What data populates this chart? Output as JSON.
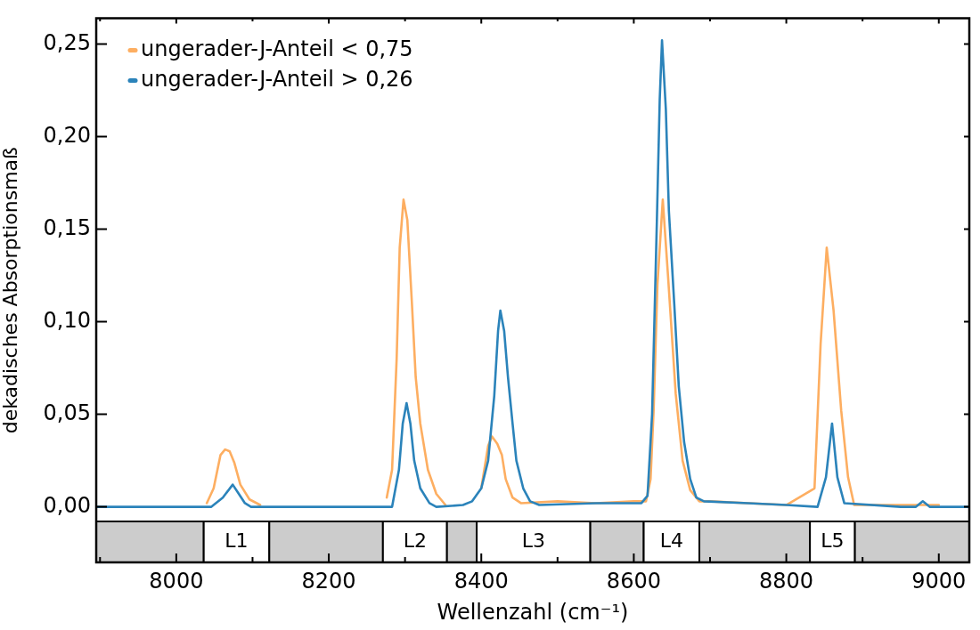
{
  "chart_data": {
    "type": "line",
    "xlabel": "Wellenzahl (cm⁻¹)",
    "ylabel": "dekadisches Absorptionsmaß",
    "legend": "top left",
    "line_style": "solid",
    "xlim": [
      7895,
      9040
    ],
    "xticks": [
      {
        "value": 7900,
        "label": null
      },
      8000,
      {
        "value": 8100,
        "label": null
      },
      8200,
      {
        "value": 8300,
        "label": null
      },
      8400,
      {
        "value": 8500,
        "label": null
      },
      8600,
      {
        "value": 8700,
        "label": null
      },
      8800,
      {
        "value": 8900,
        "label": null
      },
      9000
    ],
    "ylim": [
      -0.03,
      0.264
    ],
    "yticks": [
      {
        "value": 0,
        "label": "0,00"
      },
      {
        "value": 0.05,
        "label": "0,05"
      },
      {
        "value": 0.1,
        "label": "0,10"
      },
      {
        "value": 0.15,
        "label": "0,15"
      },
      {
        "value": 0.2,
        "label": "0,20"
      },
      {
        "value": 0.25,
        "label": "0,25"
      }
    ],
    "bands": [
      {
        "axis": "x",
        "from": 7895,
        "to": 8036,
        "color": "#cccccc"
      },
      {
        "axis": "x",
        "from": 8036,
        "to": 8122,
        "label": "L1",
        "color": "#ffffff"
      },
      {
        "axis": "x",
        "from": 8122,
        "to": 8271,
        "color": "#cccccc"
      },
      {
        "axis": "x",
        "from": 8271,
        "to": 8355,
        "label": "L2",
        "color": "#ffffff"
      },
      {
        "axis": "x",
        "from": 8355,
        "to": 8394,
        "color": "#cccccc"
      },
      {
        "axis": "x",
        "from": 8394,
        "to": 8543,
        "label": "L3",
        "color": "#ffffff"
      },
      {
        "axis": "x",
        "from": 8543,
        "to": 8613,
        "color": "#cccccc"
      },
      {
        "axis": "x",
        "from": 8613,
        "to": 8686,
        "label": "L4",
        "color": "#ffffff"
      },
      {
        "axis": "x",
        "from": 8686,
        "to": 8831,
        "color": "#cccccc"
      },
      {
        "axis": "x",
        "from": 8831,
        "to": 8890,
        "label": "L5",
        "color": "#ffffff"
      },
      {
        "axis": "x",
        "from": 8890,
        "to": 9040,
        "color": "#cccccc"
      }
    ],
    "series": [
      {
        "name": "ungerader-J-Anteil < 0,75",
        "color": "#fdae61",
        "x": [
          8040,
          8049,
          8058,
          8064,
          8070,
          8076,
          8084,
          8096,
          8110,
          8125,
          8200,
          8265,
          8276,
          8283,
          8289,
          8293,
          8298,
          8303,
          8309,
          8314,
          8320,
          8330,
          8341,
          8353,
          8365,
          8388,
          8400,
          8409,
          8414,
          8421,
          8427,
          8432,
          8441,
          8452,
          8500,
          8550,
          8600,
          8616,
          8622,
          8626,
          8631,
          8638,
          8645,
          8655,
          8664,
          8674,
          8686,
          8700,
          8750,
          8800,
          8837,
          8845,
          8853,
          8862,
          8872,
          8881,
          8889,
          8900,
          8950,
          9000
        ],
        "values": [
          0.002,
          0.01,
          0.028,
          0.031,
          0.03,
          0.024,
          0.012,
          0.004,
          0.001,
          null,
          null,
          null,
          0.005,
          0.02,
          0.08,
          0.14,
          0.166,
          0.155,
          0.11,
          0.07,
          0.045,
          0.02,
          0.007,
          0.001,
          null,
          null,
          0.01,
          0.033,
          0.038,
          0.034,
          0.028,
          0.015,
          0.005,
          0.002,
          0.003,
          0.002,
          0.003,
          0.003,
          0.015,
          0.052,
          0.12,
          0.166,
          0.124,
          0.061,
          0.025,
          0.009,
          0.003,
          0.003,
          0.002,
          0.001,
          0.01,
          0.088,
          0.14,
          0.106,
          0.052,
          0.016,
          0.001,
          0.001,
          0.001,
          0.001
        ]
      },
      {
        "name": "ungerader-J-Anteil > 0,26",
        "color": "#2b83ba",
        "x": [
          7895,
          7950,
          8000,
          8046,
          8061,
          8074,
          8082,
          8090,
          8098,
          8150,
          8200,
          8283,
          8292,
          8297,
          8302,
          8307,
          8312,
          8320,
          8332,
          8341,
          8376,
          8388,
          8400,
          8409,
          8417,
          8422,
          8425,
          8430,
          8435,
          8441,
          8446,
          8455,
          8464,
          8476,
          8550,
          8610,
          8618,
          8624,
          8630,
          8634,
          8637,
          8642,
          8646,
          8653,
          8659,
          8666,
          8674,
          8682,
          8692,
          8750,
          8800,
          8841,
          8852,
          8860,
          8867,
          8876,
          8950,
          8970,
          8979,
          8988,
          9040
        ],
        "values": [
          0,
          0,
          0,
          0,
          0.005,
          0.012,
          0.007,
          0.002,
          0,
          0,
          0,
          0,
          0.02,
          0.045,
          0.056,
          0.045,
          0.025,
          0.01,
          0.002,
          0,
          0.001,
          0.003,
          0.01,
          0.025,
          0.06,
          0.095,
          0.106,
          0.095,
          0.07,
          0.045,
          0.025,
          0.01,
          0.003,
          0.001,
          0.002,
          0.002,
          0.006,
          0.05,
          0.15,
          0.22,
          0.252,
          0.215,
          0.16,
          0.11,
          0.065,
          0.035,
          0.015,
          0.005,
          0.003,
          0.002,
          0.001,
          0,
          0.016,
          0.045,
          0.016,
          0.002,
          0,
          0,
          0.003,
          0,
          0
        ]
      }
    ]
  }
}
